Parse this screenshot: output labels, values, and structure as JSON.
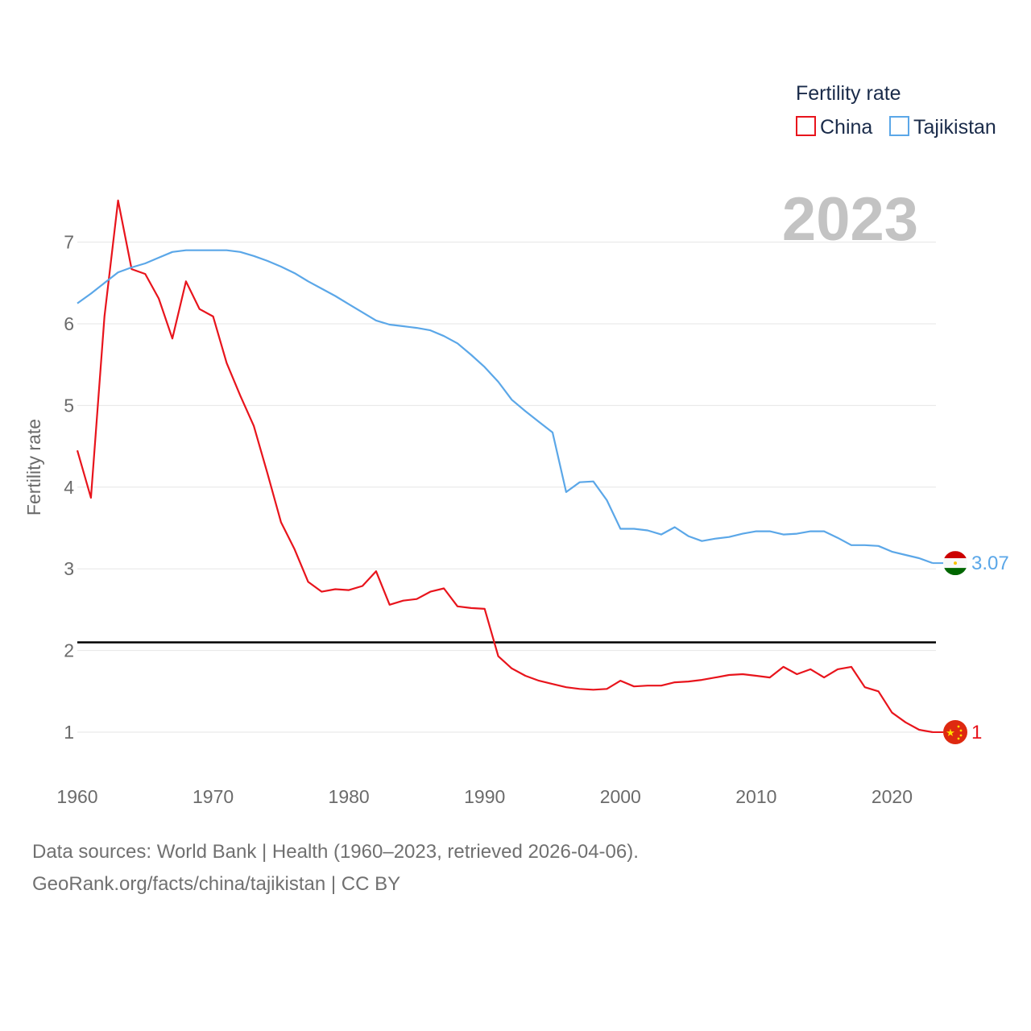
{
  "legend": {
    "title": "Fertility rate"
  },
  "year_stamp": "2023",
  "footer": {
    "line1": "Data sources: World Bank | Health (1960–2023, retrieved 2026-04-06).",
    "line2": "GeoRank.org/facts/china/tajikistan | CC BY"
  },
  "colors": {
    "china": "#e8141c",
    "tajikistan": "#5ba7e8",
    "reference": "#000000",
    "grid": "#e6e6e6"
  },
  "chart_data": {
    "type": "line",
    "title": "Fertility rate",
    "xlabel": "",
    "ylabel": "Fertility rate",
    "xlim": [
      1960,
      2023
    ],
    "ylim": [
      0.5,
      7.6
    ],
    "x_ticks": [
      1960,
      1970,
      1980,
      1990,
      2000,
      2010,
      2020
    ],
    "y_ticks": [
      1,
      2,
      3,
      4,
      5,
      6,
      7
    ],
    "reference_line": 2.1,
    "x": [
      1960,
      1961,
      1962,
      1963,
      1964,
      1965,
      1966,
      1967,
      1968,
      1969,
      1970,
      1971,
      1972,
      1973,
      1974,
      1975,
      1976,
      1977,
      1978,
      1979,
      1980,
      1981,
      1982,
      1983,
      1984,
      1985,
      1986,
      1987,
      1988,
      1989,
      1990,
      1991,
      1992,
      1993,
      1994,
      1995,
      1996,
      1997,
      1998,
      1999,
      2000,
      2001,
      2002,
      2003,
      2004,
      2005,
      2006,
      2007,
      2008,
      2009,
      2010,
      2011,
      2012,
      2013,
      2014,
      2015,
      2016,
      2017,
      2018,
      2019,
      2020,
      2021,
      2022,
      2023
    ],
    "series": [
      {
        "name": "China",
        "color": "#e8141c",
        "end_label": "1",
        "values": [
          4.45,
          3.87,
          6.09,
          7.51,
          6.67,
          6.61,
          6.31,
          5.82,
          6.52,
          6.18,
          6.09,
          5.52,
          5.12,
          4.75,
          4.17,
          3.57,
          3.24,
          2.84,
          2.72,
          2.75,
          2.74,
          2.79,
          2.97,
          2.56,
          2.61,
          2.63,
          2.72,
          2.76,
          2.54,
          2.52,
          2.51,
          1.93,
          1.78,
          1.69,
          1.63,
          1.59,
          1.55,
          1.53,
          1.52,
          1.53,
          1.63,
          1.56,
          1.57,
          1.57,
          1.61,
          1.62,
          1.64,
          1.67,
          1.7,
          1.71,
          1.69,
          1.67,
          1.8,
          1.71,
          1.77,
          1.67,
          1.77,
          1.8,
          1.55,
          1.5,
          1.24,
          1.12,
          1.03,
          1.0
        ]
      },
      {
        "name": "Tajikistan",
        "color": "#5ba7e8",
        "end_label": "3.07",
        "values": [
          6.25,
          6.37,
          6.5,
          6.63,
          6.69,
          6.74,
          6.81,
          6.88,
          6.9,
          6.9,
          6.9,
          6.9,
          6.88,
          6.83,
          6.77,
          6.7,
          6.62,
          6.52,
          6.43,
          6.34,
          6.24,
          6.14,
          6.04,
          5.99,
          5.97,
          5.95,
          5.92,
          5.85,
          5.76,
          5.62,
          5.47,
          5.29,
          5.07,
          4.93,
          4.8,
          4.67,
          3.94,
          4.06,
          4.07,
          3.84,
          3.49,
          3.49,
          3.47,
          3.42,
          3.51,
          3.4,
          3.34,
          3.37,
          3.39,
          3.43,
          3.46,
          3.46,
          3.42,
          3.43,
          3.46,
          3.46,
          3.38,
          3.29,
          3.29,
          3.28,
          3.21,
          3.17,
          3.13,
          3.07
        ]
      }
    ]
  }
}
